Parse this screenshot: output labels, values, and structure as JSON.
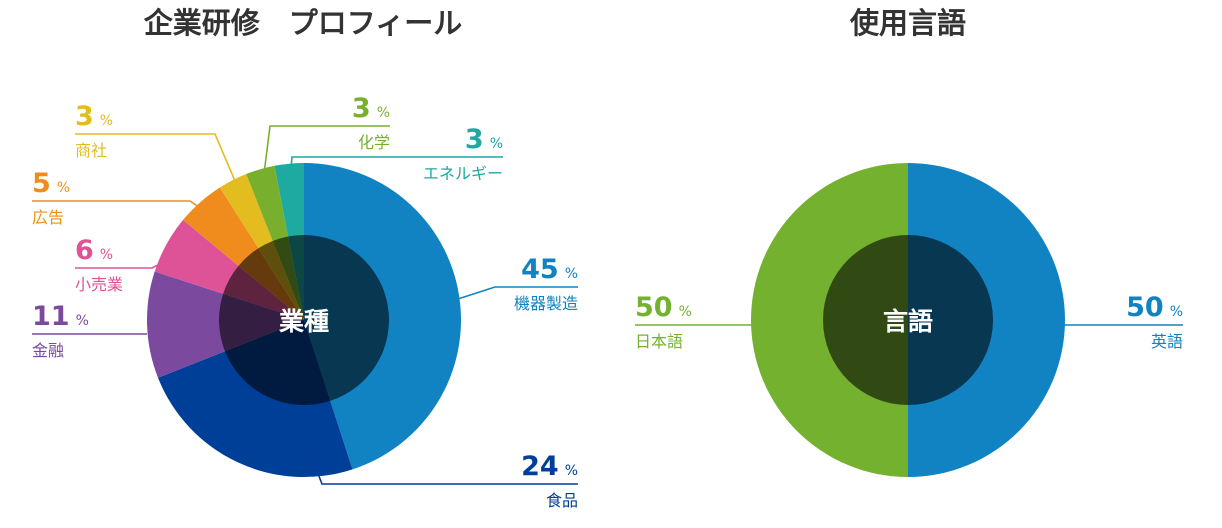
{
  "chart_data": [
    {
      "type": "pie",
      "title": "企業研修　プロフィール",
      "center_label": "業種",
      "unit": "%",
      "slices": [
        {
          "label": "機器製造",
          "value": 45,
          "color": "#1182C2"
        },
        {
          "label": "食品",
          "value": 24,
          "color": "#003F98"
        },
        {
          "label": "金融",
          "value": 11,
          "color": "#7B4A9E"
        },
        {
          "label": "小売業",
          "value": 6,
          "color": "#DE5397"
        },
        {
          "label": "広告",
          "value": 5,
          "color": "#F08C1E"
        },
        {
          "label": "商社",
          "value": 3,
          "color": "#E3BC20"
        },
        {
          "label": "化学",
          "value": 3,
          "color": "#78B02E"
        },
        {
          "label": "エネルギー",
          "value": 3,
          "color": "#1EA9A1"
        }
      ]
    },
    {
      "type": "pie",
      "title": "使用言語",
      "center_label": "言語",
      "unit": "%",
      "slices": [
        {
          "label": "英語",
          "value": 50,
          "color": "#1182C2"
        },
        {
          "label": "日本語",
          "value": 50,
          "color": "#74B12E"
        }
      ]
    }
  ]
}
